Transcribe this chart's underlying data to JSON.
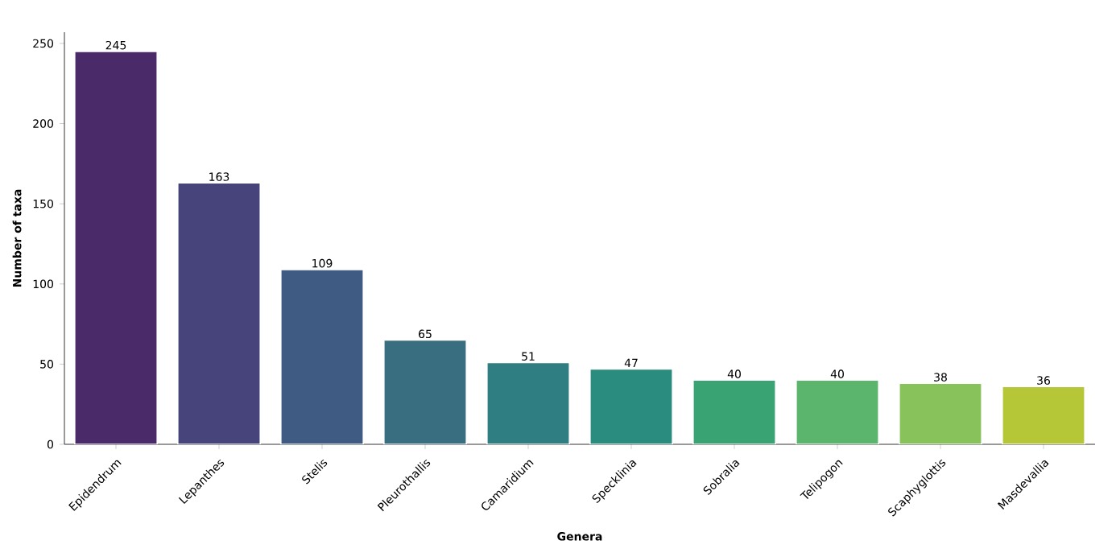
{
  "chart_data": {
    "type": "bar",
    "xlabel": "Genera",
    "ylabel": "Number of taxa",
    "categories": [
      "Epidendrum",
      "Lepanthes",
      "Stelis",
      "Pleurothallis",
      "Camaridium",
      "Specklinia",
      "Sobralia",
      "Telipogon",
      "Scaphyglottis",
      "Masdevallia"
    ],
    "values": [
      245,
      163,
      109,
      65,
      51,
      47,
      40,
      40,
      38,
      36
    ],
    "colors": [
      "#4a2a68",
      "#46447b",
      "#3f5b83",
      "#386e80",
      "#2f7e81",
      "#2a8c7e",
      "#3aa374",
      "#5cb56c",
      "#88c25a",
      "#b5c737"
    ],
    "ylim": [
      0,
      257
    ],
    "yticks": [
      0,
      50,
      100,
      150,
      200,
      250
    ],
    "data_labels": true
  }
}
